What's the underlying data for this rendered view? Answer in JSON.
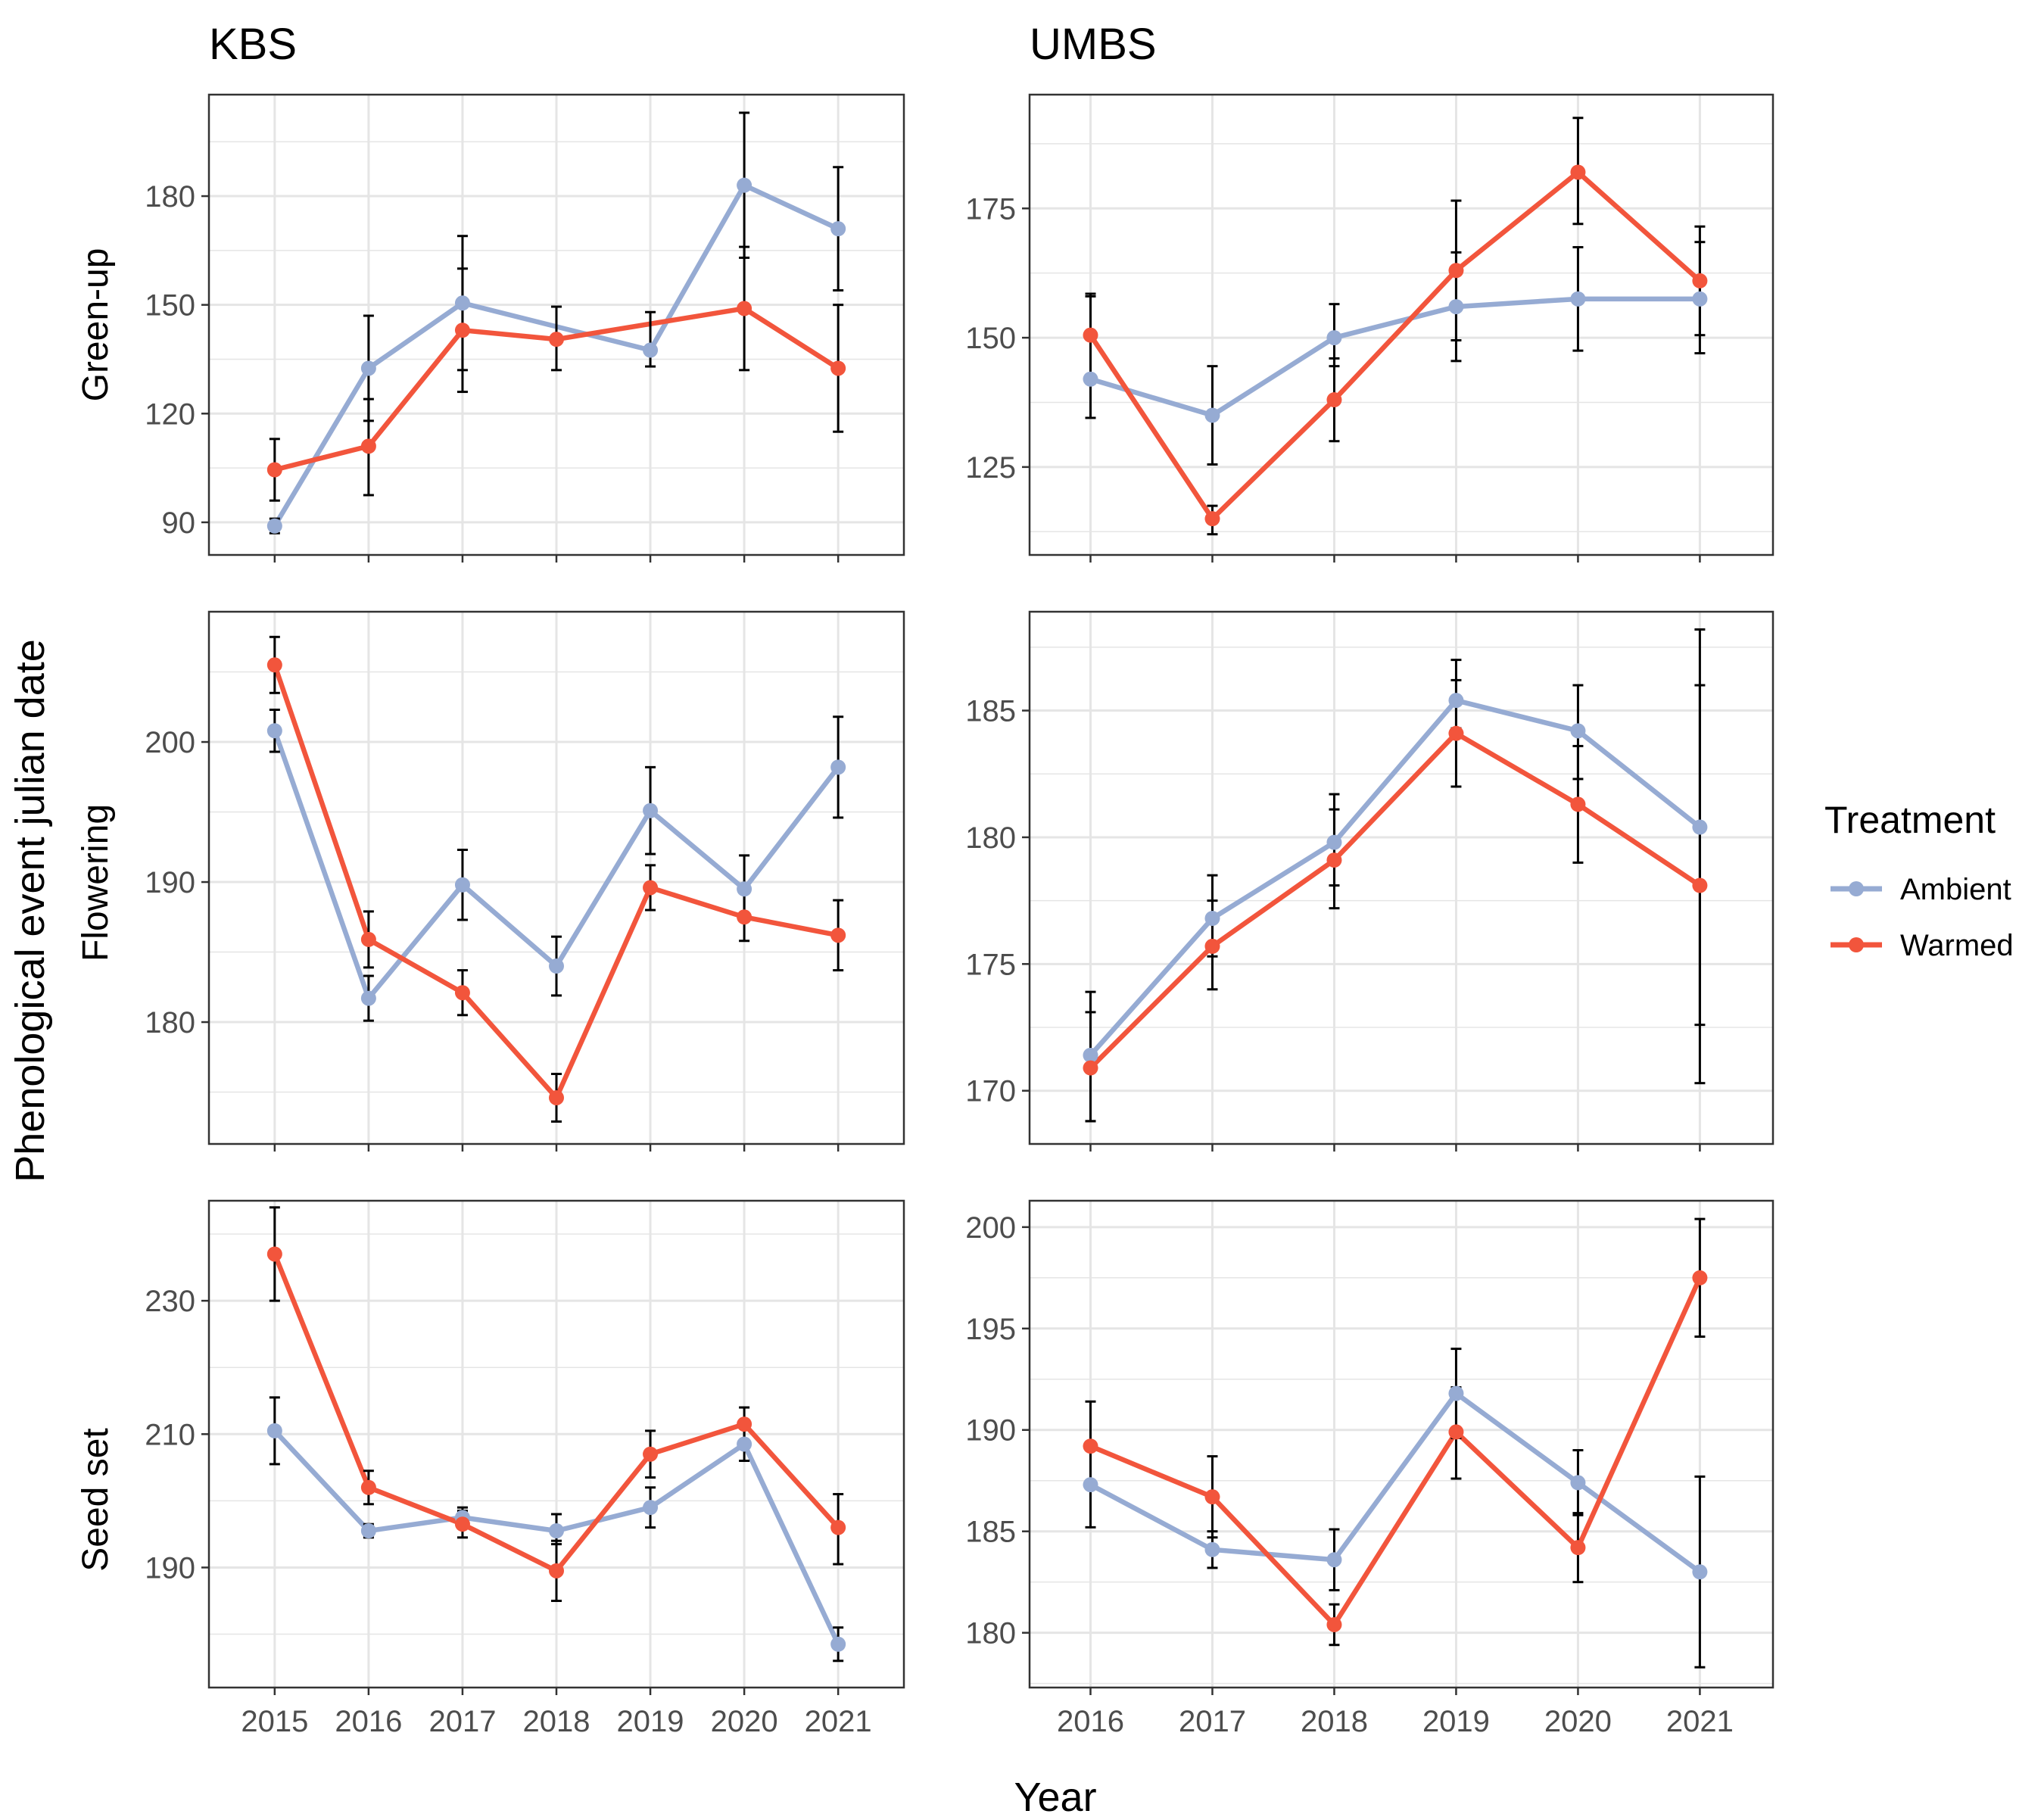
{
  "figure": {
    "y_axis_title": "Phenological event julian date",
    "x_axis_title": "Year",
    "column_titles": [
      "KBS",
      "UMBS"
    ],
    "row_titles": [
      "Green-up",
      "Flowering",
      "Seed set"
    ]
  },
  "legend": {
    "title": "Treatment",
    "entries": [
      {
        "label": "Ambient",
        "color": "#96ABD3"
      },
      {
        "label": "Warmed",
        "color": "#F2553C"
      }
    ]
  },
  "colors": {
    "ambient": "#96ABD3",
    "warmed": "#F2553C",
    "error_bar": "#000000",
    "grid": "#e5e5e5",
    "panel_border": "#333333"
  },
  "chart_data": [
    {
      "type": "line",
      "site": "KBS",
      "event": "Green-up",
      "x": [
        2015,
        2016,
        2017,
        2018,
        2019,
        2020,
        2021
      ],
      "xlim": [
        2014.3,
        2021.7
      ],
      "ylim": [
        81,
        208
      ],
      "yticks": [
        90,
        120,
        150,
        180
      ],
      "grid": true,
      "series": [
        {
          "name": "Ambient",
          "values": [
            89,
            132.5,
            150.5,
            137.5,
            183,
            171
          ],
          "x": [
            2015,
            2016,
            2017,
            2019,
            2020,
            2021
          ],
          "error": [
            [
              87,
              91
            ],
            [
              118,
              147
            ],
            [
              132,
              169
            ],
            [
              133,
              148
            ],
            [
              163,
              203
            ],
            [
              154,
              188
            ]
          ]
        },
        {
          "name": "Warmed",
          "values": [
            104.5,
            111,
            143,
            140.5,
            149,
            132.5
          ],
          "x": [
            2015,
            2016,
            2017,
            2018,
            2020,
            2021
          ],
          "error": [
            [
              96,
              113
            ],
            [
              97.5,
              124
            ],
            [
              126,
              160
            ],
            [
              132,
              149.5
            ],
            [
              132,
              166
            ],
            [
              115,
              150
            ]
          ]
        }
      ]
    },
    {
      "type": "line",
      "site": "UMBS",
      "event": "Green-up",
      "x": [
        2016,
        2017,
        2018,
        2019,
        2020,
        2021
      ],
      "xlim": [
        2015.5,
        2021.6
      ],
      "ylim": [
        108,
        197
      ],
      "yticks": [
        125,
        150,
        175
      ],
      "grid": true,
      "series": [
        {
          "name": "Ambient",
          "values": [
            142,
            135,
            150,
            156,
            157.5,
            157.5
          ],
          "error": [
            [
              134.5,
              158
            ],
            [
              125.5,
              144.5
            ],
            [
              144.5,
              156.5
            ],
            [
              145.5,
              166.5
            ],
            [
              147.5,
              167.5
            ],
            [
              147,
              168.5
            ]
          ]
        },
        {
          "name": "Warmed",
          "values": [
            150.5,
            115,
            138,
            163,
            182,
            161
          ],
          "error": [
            [
              142,
              158.5
            ],
            [
              112,
              117.5
            ],
            [
              130,
              146
            ],
            [
              149.5,
              176.5
            ],
            [
              172,
              192.5
            ],
            [
              150.5,
              171.5
            ]
          ]
        }
      ]
    },
    {
      "type": "line",
      "site": "KBS",
      "event": "Flowering",
      "x": [
        2015,
        2016,
        2017,
        2018,
        2019,
        2020,
        2021
      ],
      "xlim": [
        2014.3,
        2021.7
      ],
      "ylim": [
        171.3,
        209.3
      ],
      "yticks": [
        180,
        190,
        200
      ],
      "grid": true,
      "series": [
        {
          "name": "Ambient",
          "values": [
            200.8,
            181.7,
            189.8,
            184,
            195.1,
            189.5,
            198.2
          ],
          "error": [
            [
              199.3,
              202.3
            ],
            [
              180.1,
              183.3
            ],
            [
              187.3,
              192.3
            ],
            [
              181.9,
              186.1
            ],
            [
              192,
              198.2
            ],
            [
              187.3,
              191.9
            ],
            [
              194.6,
              201.8
            ]
          ]
        },
        {
          "name": "Warmed",
          "values": [
            205.5,
            185.9,
            182.1,
            174.6,
            189.6,
            187.5,
            186.2
          ],
          "error": [
            [
              203.5,
              207.5
            ],
            [
              183.9,
              187.9
            ],
            [
              180.5,
              183.7
            ],
            [
              172.9,
              176.3
            ],
            [
              188,
              191.2
            ],
            [
              185.8,
              189.2
            ],
            [
              183.7,
              188.7
            ]
          ]
        }
      ]
    },
    {
      "type": "line",
      "site": "UMBS",
      "event": "Flowering",
      "x": [
        2016,
        2017,
        2018,
        2019,
        2020,
        2021
      ],
      "xlim": [
        2015.5,
        2021.6
      ],
      "ylim": [
        167.9,
        188.9
      ],
      "yticks": [
        170,
        175,
        180,
        185
      ],
      "grid": true,
      "series": [
        {
          "name": "Ambient",
          "values": [
            171.4,
            176.8,
            179.8,
            185.4,
            184.2,
            180.4
          ],
          "error": [
            [
              168.8,
              173.1
            ],
            [
              175.3,
              178.5
            ],
            [
              178.1,
              181.7
            ],
            [
              184.3,
              187
            ],
            [
              182.3,
              186
            ],
            [
              172.6,
              188.2
            ]
          ]
        },
        {
          "name": "Warmed",
          "values": [
            170.9,
            175.7,
            179.1,
            184.1,
            181.3,
            178.1
          ],
          "error": [
            [
              168.8,
              173.9
            ],
            [
              174,
              177.5
            ],
            [
              177.2,
              181.1
            ],
            [
              182,
              186.2
            ],
            [
              179,
              183.6
            ],
            [
              170.3,
              186
            ]
          ]
        }
      ]
    },
    {
      "type": "line",
      "site": "KBS",
      "event": "Seed set",
      "x": [
        2015,
        2016,
        2017,
        2018,
        2019,
        2020,
        2021
      ],
      "xlim": [
        2014.3,
        2021.7
      ],
      "ylim": [
        172,
        245
      ],
      "yticks": [
        190,
        210,
        230
      ],
      "grid": true,
      "series": [
        {
          "name": "Ambient",
          "values": [
            210.5,
            195.5,
            197.5,
            195.5,
            199,
            208.5,
            178.5
          ],
          "error": [
            [
              205.5,
              215.5
            ],
            [
              194.5,
              196.5
            ],
            [
              196,
              199
            ],
            [
              193.5,
              198
            ],
            [
              196,
              202
            ],
            [
              206,
              211.5
            ],
            [
              176,
              181
            ]
          ]
        },
        {
          "name": "Warmed",
          "values": [
            237,
            202,
            196.5,
            189.5,
            207,
            211.5,
            196
          ],
          "error": [
            [
              230,
              244
            ],
            [
              199.5,
              204.5
            ],
            [
              194.5,
              198.5
            ],
            [
              185,
              194
            ],
            [
              203.5,
              210.5
            ],
            [
              209,
              214
            ],
            [
              190.5,
              201
            ]
          ]
        }
      ]
    },
    {
      "type": "line",
      "site": "UMBS",
      "event": "Seed set",
      "x": [
        2016,
        2017,
        2018,
        2019,
        2020,
        2021
      ],
      "xlim": [
        2015.5,
        2021.6
      ],
      "ylim": [
        177.3,
        201.3
      ],
      "yticks": [
        180,
        185,
        190,
        195,
        200
      ],
      "grid": true,
      "series": [
        {
          "name": "Ambient",
          "values": [
            187.3,
            184.1,
            183.6,
            191.8,
            187.4,
            183
          ],
          "error": [
            [
              185.2,
              189.4
            ],
            [
              183.2,
              185
            ],
            [
              182.1,
              185.1
            ],
            [
              189.6,
              194
            ],
            [
              185.9,
              189
            ],
            [
              178.3,
              187.7
            ]
          ]
        },
        {
          "name": "Warmed",
          "values": [
            189.2,
            186.7,
            180.4,
            189.9,
            184.2,
            197.5
          ],
          "error": [
            [
              187.1,
              191.4
            ],
            [
              184.7,
              188.7
            ],
            [
              179.4,
              181.4
            ],
            [
              187.6,
              192.1
            ],
            [
              182.5,
              185.8
            ],
            [
              194.6,
              200.4
            ]
          ]
        }
      ]
    }
  ]
}
